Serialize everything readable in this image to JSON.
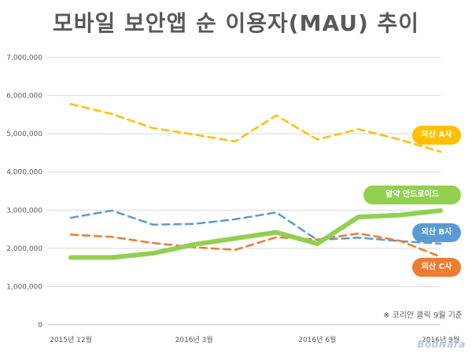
{
  "title": "모바일 보안앱 순 이용자(MAU) 추이",
  "note": "※ 코리안 클릭 9월 기준",
  "watermark": "BodNara",
  "chart_data": {
    "type": "line",
    "title": "모바일 보안앱 순 이용자(MAU) 추이",
    "x": [
      "2015-12",
      "2016-01",
      "2016-02",
      "2016-03",
      "2016-04",
      "2016-05",
      "2016-06",
      "2016-07",
      "2016-08",
      "2016-09"
    ],
    "x_tick_labels": [
      {
        "label": "2015년 12월",
        "at": "2015-12"
      },
      {
        "label": "2016년 3월",
        "at": "2016-03"
      },
      {
        "label": "2016년 6월",
        "at": "2016-06"
      },
      {
        "label": "2016년 9월",
        "at": "2016-09"
      }
    ],
    "ylim": [
      0,
      7000000
    ],
    "yticks": [
      0,
      1000000,
      2000000,
      3000000,
      4000000,
      5000000,
      6000000,
      7000000
    ],
    "ytick_labels": [
      "0",
      "1,000,000",
      "2,000,000",
      "3,000,000",
      "4,000,000",
      "5,000,000",
      "6,000,000",
      "7,000,000"
    ],
    "grid": true,
    "series": [
      {
        "name": "외산 A사",
        "color": "#FFC000",
        "style": "dashed",
        "values": [
          5780000,
          5520000,
          5150000,
          4980000,
          4800000,
          5480000,
          4850000,
          5120000,
          4850000,
          4530000
        ]
      },
      {
        "name": "알약 안드로이드",
        "color": "#92D050",
        "style": "solid",
        "values": [
          1760000,
          1760000,
          1870000,
          2100000,
          2260000,
          2420000,
          2120000,
          2820000,
          2870000,
          2990000
        ]
      },
      {
        "name": "외산 B사",
        "color": "#5B9BD5",
        "style": "dashed",
        "values": [
          2800000,
          2990000,
          2620000,
          2640000,
          2760000,
          2940000,
          2220000,
          2280000,
          2190000,
          2120000
        ]
      },
      {
        "name": "외산 C사",
        "color": "#ED7D31",
        "style": "dashed",
        "values": [
          2360000,
          2300000,
          2140000,
          2030000,
          1960000,
          2290000,
          2230000,
          2390000,
          2200000,
          1780000
        ]
      }
    ]
  }
}
